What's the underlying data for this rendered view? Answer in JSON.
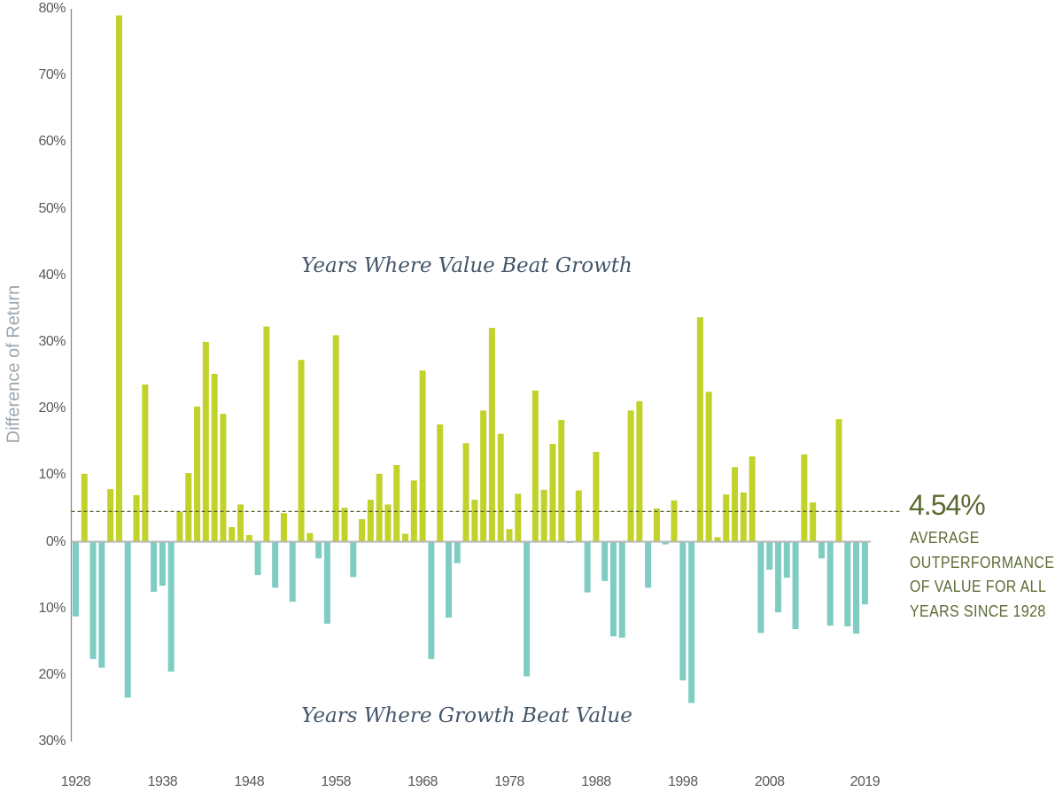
{
  "chart_data": {
    "type": "bar",
    "title": "",
    "xlabel": "",
    "ylabel": "Difference of Return",
    "ylim": [
      -30,
      80
    ],
    "grid": false,
    "x_tick_labels": [
      "1928",
      "1938",
      "1948",
      "1958",
      "1968",
      "1978",
      "1988",
      "1998",
      "2008",
      "2019"
    ],
    "y_tick_labels": [
      "80%",
      "70%",
      "60%",
      "50%",
      "40%",
      "30%",
      "20%",
      "10%",
      "0%",
      "10%",
      "20%",
      "30%"
    ],
    "annotations": {
      "upper_region": "Years Where Value Beat Growth",
      "lower_region": "Years Where Growth Beat Value",
      "average_value": "4.54%",
      "average_lines": [
        "AVERAGE",
        "OUTPERFORMANCE",
        "OF VALUE FOR ALL",
        "YEARS SINCE 1928"
      ]
    },
    "average_line": 4.54,
    "colors": {
      "positive": "#c1d22b",
      "negative": "#7fcdc2",
      "average_line": "#4f5a2a",
      "annotation": "#5c6b33",
      "region_label": "#44566a"
    },
    "categories": [
      1928,
      1929,
      1930,
      1931,
      1932,
      1933,
      1934,
      1935,
      1936,
      1937,
      1938,
      1939,
      1940,
      1941,
      1942,
      1943,
      1944,
      1945,
      1946,
      1947,
      1948,
      1949,
      1950,
      1951,
      1952,
      1953,
      1954,
      1955,
      1956,
      1957,
      1958,
      1959,
      1960,
      1961,
      1962,
      1963,
      1964,
      1965,
      1966,
      1967,
      1968,
      1969,
      1970,
      1971,
      1972,
      1973,
      1974,
      1975,
      1976,
      1977,
      1978,
      1979,
      1980,
      1981,
      1982,
      1983,
      1984,
      1985,
      1986,
      1987,
      1988,
      1989,
      1990,
      1991,
      1992,
      1993,
      1994,
      1995,
      1996,
      1997,
      1998,
      1999,
      2000,
      2001,
      2002,
      2003,
      2004,
      2005,
      2006,
      2007,
      2008,
      2009,
      2010,
      2011,
      2012,
      2013,
      2014,
      2015,
      2016,
      2017,
      2018,
      2019
    ],
    "values": [
      -11.2,
      10.2,
      -17.6,
      -18.9,
      7.9,
      79.0,
      -23.4,
      7.0,
      23.6,
      -7.5,
      -6.6,
      -19.5,
      4.5,
      10.3,
      20.3,
      30.0,
      25.2,
      19.2,
      2.2,
      5.6,
      1.0,
      -5.0,
      32.3,
      -6.9,
      4.3,
      -9.0,
      27.3,
      1.3,
      -2.5,
      -12.3,
      31.0,
      5.1,
      -5.3,
      3.4,
      6.3,
      10.2,
      5.6,
      11.5,
      1.2,
      9.2,
      25.7,
      -17.6,
      17.6,
      -11.4,
      -3.2,
      14.8,
      6.3,
      19.7,
      32.1,
      16.2,
      1.9,
      7.2,
      -20.2,
      22.7,
      7.8,
      14.7,
      18.3,
      -0.2,
      7.7,
      -7.6,
      13.5,
      -5.9,
      -14.2,
      -14.4,
      19.7,
      21.1,
      -6.9,
      5.0,
      -0.4,
      6.2,
      -20.8,
      -24.2,
      33.7,
      22.5,
      0.7,
      7.1,
      11.2,
      7.4,
      12.8,
      -13.7,
      -4.2,
      -10.6,
      -5.4,
      -13.1,
      13.1,
      5.9,
      -2.5,
      -12.6,
      18.4,
      -12.7,
      -13.8,
      -9.4
    ]
  }
}
